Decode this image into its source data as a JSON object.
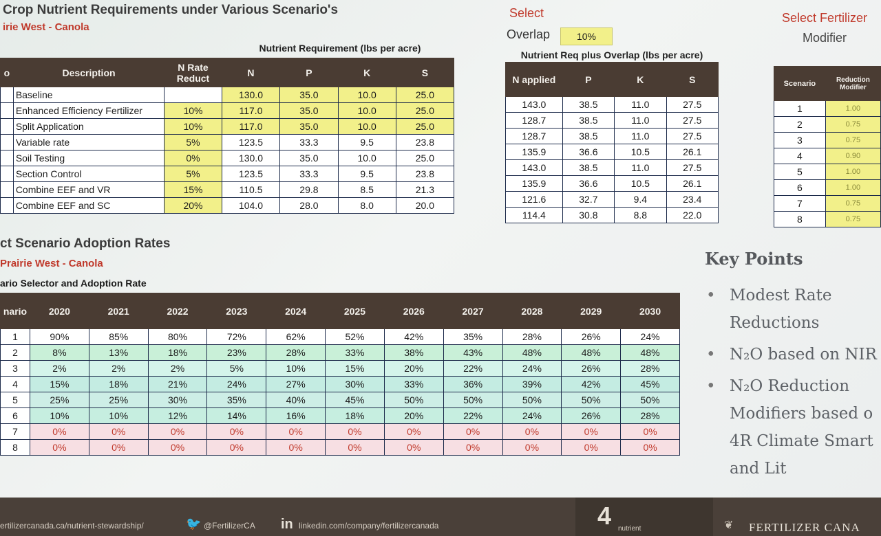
{
  "top_section": {
    "title": "Crop Nutrient Requirements under Various Scenario's",
    "subtitle": "irie West - Canola",
    "group_caption": "Nutrient Requirement (lbs per acre)",
    "headers": [
      "o",
      "Description",
      "N Rate Reduct",
      "N",
      "P",
      "K",
      "S"
    ],
    "rows": [
      {
        "desc": "Baseline",
        "rate": "",
        "n": "130.0",
        "p": "35.0",
        "k": "10.0",
        "s": "25.0"
      },
      {
        "desc": "Enhanced Efficiency Fertilizer",
        "rate": "10%",
        "n": "117.0",
        "p": "35.0",
        "k": "10.0",
        "s": "25.0"
      },
      {
        "desc": "Split Application",
        "rate": "10%",
        "n": "117.0",
        "p": "35.0",
        "k": "10.0",
        "s": "25.0"
      },
      {
        "desc": "Variable rate",
        "rate": "5%",
        "n": "123.5",
        "p": "33.3",
        "k": "9.5",
        "s": "23.8"
      },
      {
        "desc": "Soil Testing",
        "rate": "0%",
        "n": "130.0",
        "p": "35.0",
        "k": "10.0",
        "s": "25.0"
      },
      {
        "desc": "Section Control",
        "rate": "5%",
        "n": "123.5",
        "p": "33.3",
        "k": "9.5",
        "s": "23.8"
      },
      {
        "desc": "Combine EEF and VR",
        "rate": "15%",
        "n": "110.5",
        "p": "29.8",
        "k": "8.5",
        "s": "21.3"
      },
      {
        "desc": "Combine EEF and SC",
        "rate": "20%",
        "n": "104.0",
        "p": "28.0",
        "k": "8.0",
        "s": "20.0"
      }
    ]
  },
  "overlap": {
    "select_label": "Select",
    "overlap_label": "Overlap",
    "overlap_value": "10%",
    "caption": "Nutrient Req plus Overlap (lbs per acre)",
    "headers": [
      "N applied",
      "P",
      "K",
      "S"
    ],
    "rows": [
      [
        "143.0",
        "38.5",
        "11.0",
        "27.5"
      ],
      [
        "128.7",
        "38.5",
        "11.0",
        "27.5"
      ],
      [
        "128.7",
        "38.5",
        "11.0",
        "27.5"
      ],
      [
        "135.9",
        "36.6",
        "10.5",
        "26.1"
      ],
      [
        "143.0",
        "38.5",
        "11.0",
        "27.5"
      ],
      [
        "135.9",
        "36.6",
        "10.5",
        "26.1"
      ],
      [
        "121.6",
        "32.7",
        "9.4",
        "23.4"
      ],
      [
        "114.4",
        "30.8",
        "8.8",
        "22.0"
      ]
    ]
  },
  "modifier": {
    "title_line1": "Select Fertilizer",
    "title_line2": "Modifier",
    "headers": [
      "Scenario",
      "Reduction Modifier"
    ],
    "rows": [
      [
        "1",
        "1.00"
      ],
      [
        "2",
        "0.75"
      ],
      [
        "3",
        "0.75"
      ],
      [
        "4",
        "0.90"
      ],
      [
        "5",
        "1.00"
      ],
      [
        "6",
        "1.00"
      ],
      [
        "7",
        "0.75"
      ],
      [
        "8",
        "0.75"
      ]
    ]
  },
  "adoption": {
    "title": "ct Scenario Adoption Rates",
    "subtitle": "Prairie West - Canola",
    "caption": "ario Selector and Adoption Rate",
    "years": [
      "2020",
      "2021",
      "2022",
      "2023",
      "2024",
      "2025",
      "2026",
      "2027",
      "2028",
      "2029",
      "2030"
    ],
    "first_header": "nario",
    "rows": [
      {
        "s": "1",
        "v": [
          "90%",
          "85%",
          "80%",
          "72%",
          "62%",
          "52%",
          "42%",
          "35%",
          "28%",
          "26%",
          "24%"
        ]
      },
      {
        "s": "2",
        "v": [
          "8%",
          "13%",
          "18%",
          "23%",
          "28%",
          "33%",
          "38%",
          "43%",
          "48%",
          "48%",
          "48%"
        ]
      },
      {
        "s": "3",
        "v": [
          "2%",
          "2%",
          "2%",
          "5%",
          "10%",
          "15%",
          "20%",
          "22%",
          "24%",
          "26%",
          "28%"
        ]
      },
      {
        "s": "4",
        "v": [
          "15%",
          "18%",
          "21%",
          "24%",
          "27%",
          "30%",
          "33%",
          "36%",
          "39%",
          "42%",
          "45%"
        ]
      },
      {
        "s": "5",
        "v": [
          "25%",
          "25%",
          "30%",
          "35%",
          "40%",
          "45%",
          "50%",
          "50%",
          "50%",
          "50%",
          "50%"
        ]
      },
      {
        "s": "6",
        "v": [
          "10%",
          "10%",
          "12%",
          "14%",
          "16%",
          "18%",
          "20%",
          "22%",
          "24%",
          "26%",
          "28%"
        ]
      },
      {
        "s": "7",
        "v": [
          "0%",
          "0%",
          "0%",
          "0%",
          "0%",
          "0%",
          "0%",
          "0%",
          "0%",
          "0%",
          "0%"
        ]
      },
      {
        "s": "8",
        "v": [
          "0%",
          "0%",
          "0%",
          "0%",
          "0%",
          "0%",
          "0%",
          "0%",
          "0%",
          "0%",
          "0%"
        ]
      }
    ]
  },
  "key_points": {
    "title": "Key Points",
    "items": [
      {
        "lines": [
          "Modest Rate",
          "Reductions"
        ]
      },
      {
        "lines": [
          "N₂O based on NIR"
        ]
      },
      {
        "lines": [
          "N₂O Reduction",
          "Modifiers based o",
          "4R Climate Smart",
          "and Lit"
        ]
      }
    ]
  },
  "footer": {
    "link1": "ertilizercanada.ca/nutrient-stewardship/",
    "twitter": "@FertilizerCA",
    "linkedin": "linkedin.com/company/fertilizercanada",
    "badge": "nutrient",
    "brand": "FERTILIZER CANA"
  },
  "colors": {
    "header_brown": "#4a3c33",
    "highlight_yellow": "#f2f08a",
    "title_red": "#c0392b",
    "green_row": "#c9f0d8",
    "zero_row": "#f7dfe3"
  }
}
